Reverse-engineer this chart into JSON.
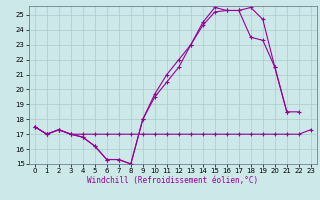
{
  "background_color": "#cce8e8",
  "grid_color": "#aacccc",
  "line_color": "#990099",
  "xlabel": "Windchill (Refroidissement éolien,°C)",
  "xlim": [
    -0.5,
    23.5
  ],
  "ylim": [
    15,
    25.6
  ],
  "yticks": [
    15,
    16,
    17,
    18,
    19,
    20,
    21,
    22,
    23,
    24,
    25
  ],
  "xticks": [
    0,
    1,
    2,
    3,
    4,
    5,
    6,
    7,
    8,
    9,
    10,
    11,
    12,
    13,
    14,
    15,
    16,
    17,
    18,
    19,
    20,
    21,
    22,
    23
  ],
  "series": [
    {
      "x": [
        0,
        1,
        2,
        3,
        4,
        5,
        6,
        7,
        8,
        9,
        10,
        11,
        12,
        13,
        14,
        15,
        16,
        17,
        18,
        19,
        20,
        21,
        22,
        23
      ],
      "y": [
        17.5,
        17.0,
        17.3,
        17.0,
        17.0,
        17.0,
        17.0,
        17.0,
        17.0,
        17.0,
        17.0,
        17.0,
        17.0,
        17.0,
        17.0,
        17.0,
        17.0,
        17.0,
        17.0,
        17.0,
        17.0,
        17.0,
        17.0,
        17.3
      ]
    },
    {
      "x": [
        0,
        1,
        2,
        3,
        4,
        5,
        6,
        7,
        8,
        9,
        10,
        11,
        12,
        13,
        14,
        15,
        16,
        17,
        18,
        19,
        20,
        21,
        22
      ],
      "y": [
        17.5,
        17.0,
        17.3,
        17.0,
        16.8,
        16.2,
        15.3,
        15.3,
        15.0,
        18.0,
        19.5,
        20.5,
        21.5,
        23.0,
        24.3,
        25.2,
        25.3,
        25.3,
        23.5,
        23.3,
        21.5,
        18.5,
        18.5
      ]
    },
    {
      "x": [
        0,
        1,
        2,
        3,
        4,
        5,
        6,
        7,
        8,
        9,
        10,
        11,
        12,
        13,
        14,
        15,
        16,
        17,
        18,
        19,
        20,
        21
      ],
      "y": [
        17.5,
        17.0,
        17.3,
        17.0,
        16.8,
        16.2,
        15.3,
        15.3,
        15.0,
        18.0,
        19.7,
        21.0,
        22.0,
        23.0,
        24.5,
        25.5,
        25.3,
        25.3,
        25.5,
        24.7,
        21.5,
        18.5
      ]
    }
  ]
}
